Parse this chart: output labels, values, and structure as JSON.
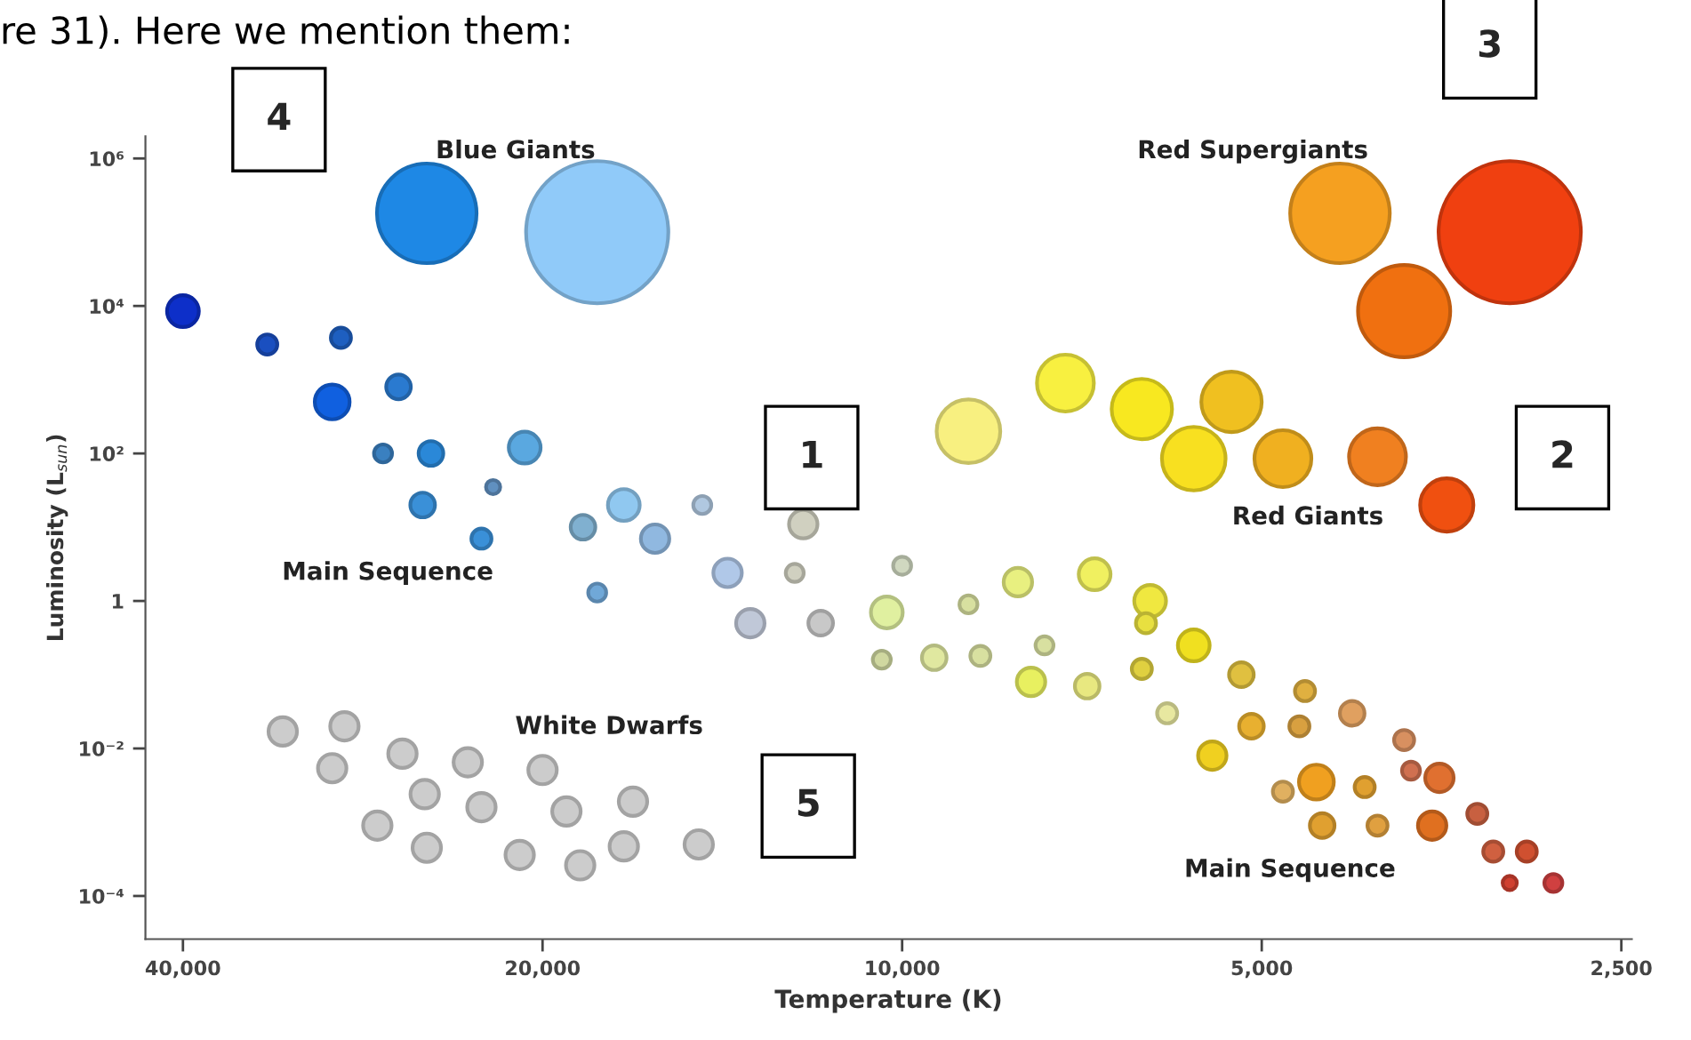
{
  "chart_data": {
    "type": "bubble",
    "xlabel": "Temperature (K)",
    "ylabel": "Luminosity (L$_{sun}$)",
    "log": "xy",
    "grid": false,
    "legend": false,
    "marker": "circle",
    "xlim": [
      43000,
      2450
    ],
    "ylim": [
      2.6e-05,
      2000000
    ],
    "xticks": [
      {
        "value": 40000,
        "label": "40,000"
      },
      {
        "value": 20000,
        "label": "20,000"
      },
      {
        "value": 10000,
        "label": "10,000"
      },
      {
        "value": 5000,
        "label": "5,000"
      },
      {
        "value": 2500,
        "label": "2,500"
      }
    ],
    "yticks": [
      {
        "value": 0.0001,
        "label": "10⁻⁴"
      },
      {
        "value": 0.01,
        "label": "10⁻²"
      },
      {
        "value": 1,
        "label": "1"
      },
      {
        "value": 100,
        "label": "10²"
      },
      {
        "value": 10000,
        "label": "10⁴"
      },
      {
        "value": 1000000,
        "label": "10⁶"
      }
    ],
    "series": [
      {
        "x": [
          25000,
          18000,
          4300,
          3100,
          3800,
          8800,
          7300,
          6300,
          5300,
          5700,
          4800,
          4000,
          3500,
          40000,
          34000,
          29500,
          30000,
          26400,
          27200,
          24800,
          20700,
          25200,
          22000,
          22500,
          18500,
          17100,
          16100,
          14700,
          18000,
          12100,
          14000,
          12300,
          13400,
          11700,
          10000,
          10300,
          8800,
          8000,
          10400,
          9400,
          8600,
          7600,
          7800,
          7000,
          6900,
          6200,
          6250,
          5700,
          6300,
          6000,
          5200,
          5500,
          5100,
          4600,
          4650,
          4200,
          3800,
          3750,
          3550,
          4800,
          4500,
          4100,
          4450,
          4000,
          3600,
          3300,
          3200,
          3000,
          3100,
          2850,
          33000,
          29300,
          30000,
          26200,
          23100,
          20000,
          25100,
          22500,
          19100,
          16800,
          27500,
          25000,
          20900,
          18600,
          17100,
          14800
        ],
        "values": [
          180000,
          100000,
          180000,
          100000,
          8500,
          200,
          900,
          400,
          500,
          85,
          85,
          90,
          20,
          8500,
          3000,
          3700,
          500,
          800,
          100,
          100,
          120,
          20,
          35,
          7,
          10,
          20,
          7,
          20,
          1.3,
          11,
          2.4,
          2.4,
          0.5,
          0.5,
          3,
          0.7,
          0.9,
          1.8,
          0.16,
          0.17,
          0.18,
          0.25,
          0.08,
          0.07,
          2.3,
          1,
          0.5,
          0.25,
          0.12,
          0.03,
          0.1,
          0.008,
          0.02,
          0.06,
          0.02,
          0.03,
          0.013,
          0.005,
          0.004,
          0.0026,
          0.0035,
          0.003,
          0.0009,
          0.0009,
          0.0009,
          0.0013,
          0.0004,
          0.0004,
          0.00015,
          0.00015,
          0.017,
          0.02,
          0.0054,
          0.0085,
          0.0065,
          0.0051,
          0.0024,
          0.0016,
          0.0014,
          0.0019,
          0.0009,
          0.00045,
          0.00036,
          0.00026,
          0.00047,
          0.0005
        ],
        "sizes": [
          0.49,
          1,
          0.49,
          1,
          0.42,
          0.2,
          0.16,
          0.18,
          0.18,
          0.2,
          0.16,
          0.16,
          0.14,
          0.05,
          0.02,
          0.02,
          0.06,
          0.03,
          0.016,
          0.03,
          0.05,
          0.03,
          0.01,
          0.02,
          0.03,
          0.05,
          0.04,
          0.016,
          0.016,
          0.04,
          0.04,
          0.016,
          0.04,
          0.03,
          0.016,
          0.05,
          0.016,
          0.04,
          0.016,
          0.03,
          0.02,
          0.016,
          0.04,
          0.03,
          0.05,
          0.05,
          0.02,
          0.05,
          0.02,
          0.02,
          0.03,
          0.04,
          0.03,
          0.02,
          0.02,
          0.03,
          0.02,
          0.016,
          0.04,
          0.02,
          0.06,
          0.02,
          0.03,
          0.02,
          0.04,
          0.02,
          0.02,
          0.02,
          0.01,
          0.016,
          0.04,
          0.04,
          0.04,
          0.04,
          0.04,
          0.04,
          0.04,
          0.04,
          0.04,
          0.04,
          0.04,
          0.04,
          0.04,
          0.04,
          0.04,
          0.04
        ],
        "colors": [
          "#1e88e5",
          "#90caf9",
          "#f5a020",
          "#f04010",
          "#f07010",
          "#f8f080",
          "#f8f040",
          "#f8e820",
          "#f0c020",
          "#f8e020",
          "#f0b020",
          "#f08020",
          "#f05010",
          "#0d2fc9",
          "#1a4fc0",
          "#1e5fc0",
          "#1060e0",
          "#2a7ad0",
          "#3a80c0",
          "#2a88d8",
          "#5aa8e0",
          "#3a90d8",
          "#6090c0",
          "#3a90d8",
          "#80b0d0",
          "#90c8f0",
          "#90b8e0",
          "#b0c8e0",
          "#70a8d8",
          "#d0d0c0",
          "#b0c8e8",
          "#d0d0c0",
          "#c0c8d8",
          "#c8c8c8",
          "#d0d8c0",
          "#e0f0a0",
          "#d8e0a0",
          "#e8f080",
          "#d0d8a0",
          "#e0e8a0",
          "#d8e0a0",
          "#d8e0a0",
          "#e8f060",
          "#e8e880",
          "#f0f060",
          "#f0e840",
          "#e8e040",
          "#f0e020",
          "#e0d040",
          "#e8e8a0",
          "#e0c040",
          "#f0d020",
          "#e8b030",
          "#e0b040",
          "#d8a040",
          "#e0a060",
          "#d89060",
          "#d07050",
          "#e07030",
          "#e0b060",
          "#f0a020",
          "#e0a030",
          "#e0a030",
          "#e0a040",
          "#e07020",
          "#c86040",
          "#d06040",
          "#d05030",
          "#d04030",
          "#d04040",
          "#cccccc",
          "#cccccc",
          "#cccccc",
          "#cccccc",
          "#cccccc",
          "#cccccc",
          "#cccccc",
          "#cccccc",
          "#cccccc",
          "#cccccc",
          "#cccccc",
          "#cccccc",
          "#cccccc",
          "#cccccc",
          "#cccccc",
          "#cccccc"
        ]
      }
    ],
    "annotations": [
      "Blue Giants",
      "Red Supergiants",
      "Red Giants",
      "Main Sequence",
      "White Dwarfs",
      "Main Sequence",
      "re 31). Here we mention them:",
      "1",
      "2",
      "3",
      "4",
      "5"
    ]
  }
}
